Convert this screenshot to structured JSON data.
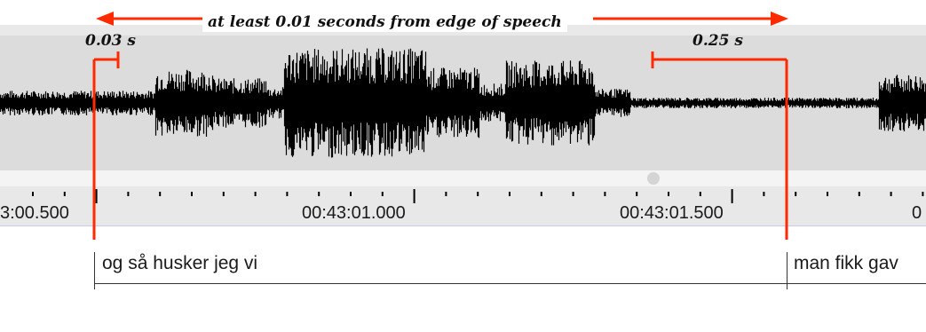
{
  "annotations": {
    "headline": "at least 0.01 seconds from edge of speech",
    "left_gap": "0.03 s",
    "right_gap": "0.25 s",
    "accent_color": "#ff2a00"
  },
  "ruler": {
    "labels": [
      "3:00.500",
      "00:43:01.000",
      "00:43:01.500",
      "0"
    ]
  },
  "tier": {
    "segments": [
      "og så husker jeg vi",
      "man fikk gav"
    ]
  }
}
